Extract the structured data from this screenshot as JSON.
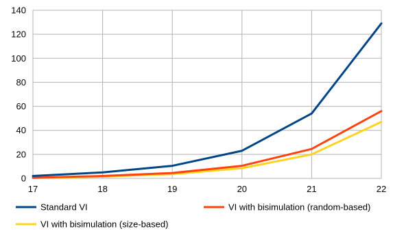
{
  "chart_data": {
    "type": "line",
    "x": [
      17,
      18,
      19,
      20,
      21,
      22
    ],
    "xlim": [
      17,
      22
    ],
    "ylim": [
      0,
      140
    ],
    "yticks": [
      0,
      20,
      40,
      60,
      80,
      100,
      120,
      140
    ],
    "xticks": [
      17,
      18,
      19,
      20,
      21,
      22
    ],
    "grid": true,
    "legend_position": "bottom",
    "series": [
      {
        "name": "Standard VI",
        "color": "#004586",
        "values": [
          2,
          5,
          10.5,
          23,
          54,
          129
        ]
      },
      {
        "name": "VI with bisimulation (random-based)",
        "color": "#ff420e",
        "values": [
          0.5,
          2,
          4.5,
          10.5,
          24.5,
          56
        ]
      },
      {
        "name": "VI with bisimulation (size-based)",
        "color": "#ffd320",
        "values": [
          0.3,
          1.5,
          3.5,
          8.5,
          20,
          47
        ]
      }
    ]
  }
}
